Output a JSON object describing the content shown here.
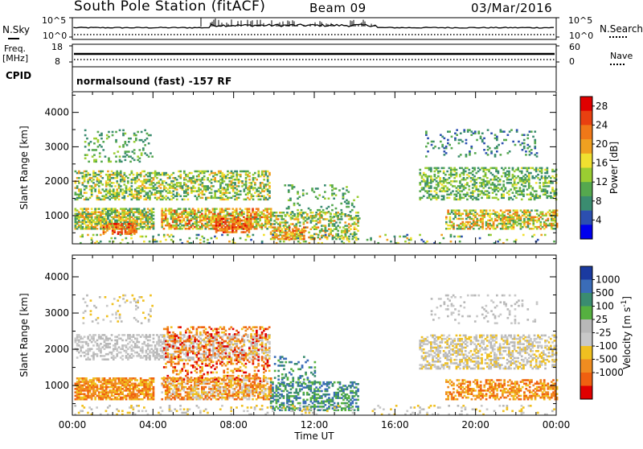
{
  "header": {
    "station": "South Pole Station (fitACF)",
    "beam": "Beam 09",
    "date": "03/Mar/2016"
  },
  "top_panels": {
    "nsky_label": "N.Sky",
    "nsky_top_tick": "10^5",
    "nsky_bottom_tick": "10^0",
    "nsearch_label": "N.Search",
    "nsearch_top_tick": "10^5",
    "nsearch_bottom_tick": "10^0",
    "freq_label_1": "Freq.",
    "freq_label_2": "[MHz]",
    "freq_top_tick": "18",
    "freq_bottom_tick": "8",
    "nave_label": "Nave",
    "nave_top_tick": "60",
    "nave_bottom_tick": "0",
    "cpid_label": "CPID",
    "cpid_value": "normalsound (fast) -157 RF"
  },
  "chart_data": [
    {
      "type": "heatmap",
      "name": "power",
      "ylabel": "Slant Range [km]",
      "y_ticks": [
        "1000",
        "2000",
        "3000",
        "4000"
      ],
      "y_tick_values": [
        1000,
        2000,
        3000,
        4000
      ],
      "ylim": [
        180,
        4600
      ],
      "x_ticks": [
        "00:00",
        "04:00",
        "08:00",
        "12:00",
        "16:00",
        "20:00",
        "00:00"
      ],
      "x_tick_values": [
        0,
        4,
        8,
        12,
        16,
        20,
        24
      ],
      "xlim": [
        0,
        24
      ],
      "colorbar": {
        "label": "Power [dB]",
        "tick_labels": [
          "4",
          "8",
          "12",
          "16",
          "20",
          "24",
          "28"
        ],
        "tick_values": [
          4,
          8,
          12,
          16,
          20,
          24,
          28
        ],
        "range": [
          0,
          30
        ],
        "colors": [
          "#0000ee",
          "#2c4fb0",
          "#3a8c70",
          "#55a84e",
          "#9acd32",
          "#f0e030",
          "#f0a020",
          "#f07818",
          "#e84010",
          "#e00000"
        ]
      },
      "regions": [
        {
          "t0": 0.1,
          "t1": 4.0,
          "r0": 600,
          "r1": 1200,
          "v": [
            6,
            22
          ],
          "d": 0.75
        },
        {
          "t0": 4.4,
          "t1": 9.8,
          "r0": 600,
          "r1": 1200,
          "v": [
            8,
            26
          ],
          "d": 0.7
        },
        {
          "t0": 1.5,
          "t1": 3.2,
          "r0": 450,
          "r1": 750,
          "v": [
            18,
            28
          ],
          "d": 0.6
        },
        {
          "t0": 7.0,
          "t1": 8.8,
          "r0": 500,
          "r1": 900,
          "v": [
            18,
            28
          ],
          "d": 0.6
        },
        {
          "t0": 0.1,
          "t1": 9.8,
          "r0": 1450,
          "r1": 2300,
          "v": [
            6,
            20
          ],
          "d": 0.45
        },
        {
          "t0": 0.5,
          "t1": 4.0,
          "r0": 2550,
          "r1": 3500,
          "v": [
            6,
            14
          ],
          "d": 0.15
        },
        {
          "t0": 9.8,
          "t1": 14.2,
          "r0": 300,
          "r1": 1100,
          "v": [
            6,
            22
          ],
          "d": 0.45
        },
        {
          "t0": 10.0,
          "t1": 11.5,
          "r0": 300,
          "r1": 650,
          "v": [
            16,
            26
          ],
          "d": 0.5
        },
        {
          "t0": 10.5,
          "t1": 14.2,
          "r0": 900,
          "r1": 1900,
          "v": [
            6,
            14
          ],
          "d": 0.12
        },
        {
          "t0": 18.5,
          "t1": 24.0,
          "r0": 600,
          "r1": 1150,
          "v": [
            8,
            24
          ],
          "d": 0.55
        },
        {
          "t0": 17.2,
          "t1": 24.0,
          "r0": 1450,
          "r1": 2400,
          "v": [
            6,
            16
          ],
          "d": 0.4
        },
        {
          "t0": 17.5,
          "t1": 23.0,
          "r0": 2700,
          "r1": 3500,
          "v": [
            4,
            12
          ],
          "d": 0.12
        },
        {
          "t0": 0.0,
          "t1": 24.0,
          "r0": 180,
          "r1": 450,
          "v": [
            4,
            20
          ],
          "d": 0.12
        }
      ]
    },
    {
      "type": "heatmap",
      "name": "velocity",
      "ylabel": "Slant Range [km]",
      "y_ticks": [
        "1000",
        "2000",
        "3000",
        "4000"
      ],
      "y_tick_values": [
        1000,
        2000,
        3000,
        4000
      ],
      "ylim": [
        180,
        4600
      ],
      "x_ticks": [
        "00:00",
        "04:00",
        "08:00",
        "12:00",
        "16:00",
        "20:00",
        "00:00"
      ],
      "x_tick_values": [
        0,
        4,
        8,
        12,
        16,
        20,
        24
      ],
      "xlim": [
        0,
        24
      ],
      "xlabel": "Time UT",
      "colorbar": {
        "label": "Velocity [m s^-1]",
        "tick_labels": [
          "1000",
          "500",
          "100",
          "25",
          "-25",
          "-100",
          "-500",
          "-1000"
        ],
        "colors": [
          "#1a3aa0",
          "#3a6cb8",
          "#3a8c70",
          "#55b040",
          "#b8b8b8",
          "#c8c8c8",
          "#f0c020",
          "#f08c20",
          "#f06010",
          "#e00000"
        ]
      },
      "regions": [
        {
          "t0": 0.1,
          "t1": 4.0,
          "r0": 600,
          "r1": 1200,
          "v": [
            6,
            8
          ],
          "d": 0.75
        },
        {
          "t0": 4.4,
          "t1": 9.8,
          "r0": 600,
          "r1": 1200,
          "v": [
            5,
            8
          ],
          "d": 0.65
        },
        {
          "t0": 0.1,
          "t1": 9.8,
          "r0": 1700,
          "r1": 2400,
          "v": [
            4,
            5
          ],
          "d": 0.45
        },
        {
          "t0": 4.5,
          "t1": 9.8,
          "r0": 1100,
          "r1": 2600,
          "v": [
            6,
            9
          ],
          "d": 0.3
        },
        {
          "t0": 0.5,
          "t1": 4.0,
          "r0": 2700,
          "r1": 3500,
          "v": [
            4,
            6
          ],
          "d": 0.1
        },
        {
          "t0": 9.8,
          "t1": 14.2,
          "r0": 300,
          "r1": 1100,
          "v": [
            1,
            3
          ],
          "d": 0.45
        },
        {
          "t0": 10.0,
          "t1": 12.0,
          "r0": 1000,
          "r1": 1800,
          "v": [
            1,
            3
          ],
          "d": 0.2
        },
        {
          "t0": 18.5,
          "t1": 24.0,
          "r0": 600,
          "r1": 1150,
          "v": [
            6,
            8
          ],
          "d": 0.5
        },
        {
          "t0": 17.2,
          "t1": 24.0,
          "r0": 1450,
          "r1": 2400,
          "v": [
            4,
            6
          ],
          "d": 0.45
        },
        {
          "t0": 17.5,
          "t1": 23.0,
          "r0": 2700,
          "r1": 3500,
          "v": [
            4,
            5
          ],
          "d": 0.1
        },
        {
          "t0": 0.0,
          "t1": 24.0,
          "r0": 180,
          "r1": 450,
          "v": [
            4,
            6
          ],
          "d": 0.12
        }
      ]
    }
  ]
}
